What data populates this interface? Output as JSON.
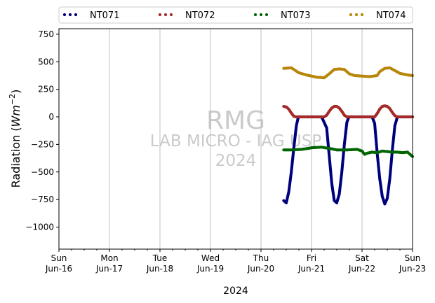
{
  "chart_data": {
    "type": "scatter",
    "ylabel_main": "Radiation (",
    "ylabel_italic": "Wm",
    "ylabel_sup": "−2",
    "ylabel_close": ")",
    "xlabel": "2024",
    "ylim": [
      -1200,
      800
    ],
    "yticks": [
      -1000,
      -750,
      -500,
      -250,
      0,
      250,
      500,
      750
    ],
    "ytick_labels": [
      "−1000",
      "−750",
      "−500",
      "−250",
      "0",
      "250",
      "500",
      "750"
    ],
    "xlim_days": [
      0,
      7
    ],
    "xticks": [
      {
        "day": 0,
        "dow": "Sun",
        "date": "Jun-16"
      },
      {
        "day": 1,
        "dow": "Mon",
        "date": "Jun-17"
      },
      {
        "day": 2,
        "dow": "Tue",
        "date": "Jun-18"
      },
      {
        "day": 3,
        "dow": "Wed",
        "date": "Jun-19"
      },
      {
        "day": 4,
        "dow": "Thu",
        "date": "Jun-20"
      },
      {
        "day": 5,
        "dow": "Fri",
        "date": "Jun-21"
      },
      {
        "day": 6,
        "dow": "Sat",
        "date": "Jun-22"
      },
      {
        "day": 7,
        "dow": "Sun",
        "date": "Jun-23"
      }
    ],
    "grid_x": true,
    "legend_position": "top",
    "watermark": {
      "line1": "RMG",
      "line2": "LAB MICRO - IAG USP",
      "line3": "2024"
    },
    "series": [
      {
        "name": "NT071",
        "color": "#00007f",
        "points": [
          [
            4.45,
            -760
          ],
          [
            4.5,
            -780
          ],
          [
            4.55,
            -680
          ],
          [
            4.6,
            -500
          ],
          [
            4.65,
            -280
          ],
          [
            4.7,
            -80
          ],
          [
            4.74,
            0
          ],
          [
            4.8,
            0
          ],
          [
            5.0,
            0
          ],
          [
            5.2,
            0
          ],
          [
            5.3,
            -100
          ],
          [
            5.35,
            -350
          ],
          [
            5.4,
            -600
          ],
          [
            5.45,
            -760
          ],
          [
            5.5,
            -780
          ],
          [
            5.55,
            -700
          ],
          [
            5.6,
            -500
          ],
          [
            5.65,
            -250
          ],
          [
            5.7,
            -50
          ],
          [
            5.74,
            0
          ],
          [
            5.9,
            0
          ],
          [
            6.1,
            0
          ],
          [
            6.2,
            0
          ],
          [
            6.25,
            -60
          ],
          [
            6.3,
            -330
          ],
          [
            6.35,
            -560
          ],
          [
            6.4,
            -720
          ],
          [
            6.45,
            -790
          ],
          [
            6.5,
            -740
          ],
          [
            6.55,
            -560
          ],
          [
            6.6,
            -300
          ],
          [
            6.65,
            -80
          ],
          [
            6.7,
            0
          ],
          [
            6.8,
            0
          ],
          [
            7.0,
            0
          ]
        ]
      },
      {
        "name": "NT072",
        "color": "#a52a2a",
        "points": [
          [
            4.45,
            95
          ],
          [
            4.5,
            90
          ],
          [
            4.55,
            70
          ],
          [
            4.6,
            35
          ],
          [
            4.65,
            5
          ],
          [
            4.7,
            0
          ],
          [
            5.0,
            0
          ],
          [
            5.25,
            0
          ],
          [
            5.3,
            15
          ],
          [
            5.35,
            50
          ],
          [
            5.4,
            80
          ],
          [
            5.45,
            95
          ],
          [
            5.5,
            95
          ],
          [
            5.55,
            80
          ],
          [
            5.6,
            50
          ],
          [
            5.65,
            15
          ],
          [
            5.7,
            0
          ],
          [
            6.0,
            0
          ],
          [
            6.25,
            0
          ],
          [
            6.3,
            30
          ],
          [
            6.35,
            70
          ],
          [
            6.4,
            95
          ],
          [
            6.45,
            100
          ],
          [
            6.5,
            95
          ],
          [
            6.55,
            75
          ],
          [
            6.6,
            40
          ],
          [
            6.65,
            10
          ],
          [
            6.7,
            0
          ],
          [
            7.0,
            0
          ]
        ]
      },
      {
        "name": "NT073",
        "color": "#006400",
        "points": [
          [
            4.45,
            -300
          ],
          [
            4.6,
            -300
          ],
          [
            4.8,
            -295
          ],
          [
            4.95,
            -285
          ],
          [
            5.0,
            -280
          ],
          [
            5.2,
            -275
          ],
          [
            5.4,
            -290
          ],
          [
            5.5,
            -300
          ],
          [
            5.7,
            -300
          ],
          [
            5.9,
            -295
          ],
          [
            6.0,
            -310
          ],
          [
            6.05,
            -340
          ],
          [
            6.1,
            -330
          ],
          [
            6.2,
            -320
          ],
          [
            6.3,
            -325
          ],
          [
            6.4,
            -310
          ],
          [
            6.5,
            -315
          ],
          [
            6.6,
            -320
          ],
          [
            6.7,
            -320
          ],
          [
            6.8,
            -325
          ],
          [
            6.9,
            -320
          ],
          [
            7.0,
            -360
          ]
        ]
      },
      {
        "name": "NT074",
        "color": "#b8860b",
        "points": [
          [
            4.45,
            440
          ],
          [
            4.6,
            445
          ],
          [
            4.75,
            400
          ],
          [
            4.9,
            380
          ],
          [
            5.0,
            370
          ],
          [
            5.1,
            360
          ],
          [
            5.25,
            355
          ],
          [
            5.35,
            390
          ],
          [
            5.45,
            430
          ],
          [
            5.55,
            435
          ],
          [
            5.65,
            430
          ],
          [
            5.75,
            390
          ],
          [
            5.85,
            375
          ],
          [
            6.0,
            370
          ],
          [
            6.15,
            365
          ],
          [
            6.3,
            375
          ],
          [
            6.35,
            410
          ],
          [
            6.45,
            440
          ],
          [
            6.55,
            445
          ],
          [
            6.65,
            420
          ],
          [
            6.75,
            395
          ],
          [
            6.9,
            380
          ],
          [
            7.0,
            375
          ]
        ]
      }
    ]
  }
}
